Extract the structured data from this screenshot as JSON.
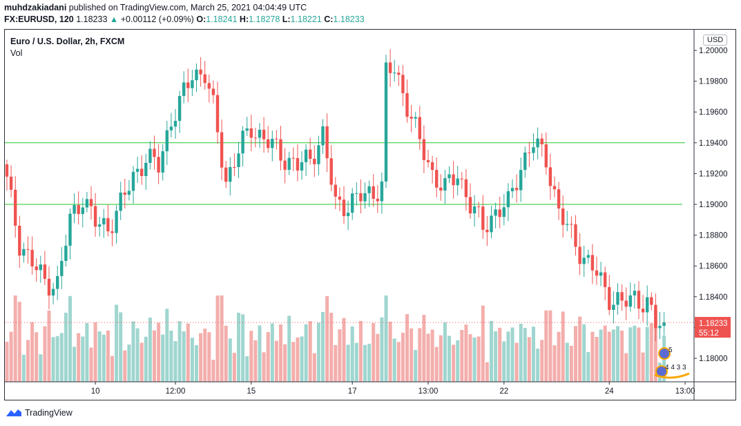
{
  "header": {
    "publisher": "muhdzakiadani",
    "published_text": "published on TradingView.com, March 25, 2021 04:04:49 UTC",
    "symbol": "FX:EURUSD, 120",
    "last": "1.18233",
    "change": "+0.00112 (+0.09%)",
    "o_label": "O:",
    "o_value": "1.18241",
    "h_label": "H:",
    "h_value": "1.18278",
    "l_label": "L:",
    "l_value": "1.18221",
    "c_label": "C:",
    "c_value": "1.18233"
  },
  "legend": {
    "title": "Euro / U.S. Dollar, 2h, FXCM",
    "volume": "Vol"
  },
  "currency_button": "USD",
  "price_label": {
    "value": "1.18233",
    "countdown": "55:12"
  },
  "events": {
    "top": "5",
    "bottom": "4 4 3 3"
  },
  "footer": {
    "brand": "TradingView"
  },
  "colors": {
    "up": "#26a69a",
    "down": "#ef5350",
    "up_vol": "#9fd6cf",
    "down_vol": "#f3aeac",
    "hline": "#22c42a",
    "lastline": "#ef5350"
  },
  "chart_data": {
    "type": "candlestick",
    "symbol": "EURUSD",
    "interval": "2h",
    "y_axis": {
      "ticks": [
        1.18,
        1.182,
        1.184,
        1.186,
        1.188,
        1.19,
        1.192,
        1.194,
        1.196,
        1.198,
        1.2
      ],
      "tick_labels": [
        "1.18000",
        "1.18200",
        "1.18400",
        "1.18600",
        "1.18800",
        "1.19000",
        "1.19200",
        "1.19400",
        "1.19600",
        "1.19800",
        "1.20000"
      ],
      "range": [
        1.1772,
        1.2012
      ]
    },
    "x_axis": {
      "tick_labels": [
        "10",
        "12:00",
        "15",
        "17",
        "13:00",
        "22",
        "24",
        "13:00"
      ],
      "tick_bar_index": [
        21,
        40,
        58,
        82,
        100,
        118,
        143,
        161
      ]
    },
    "horizontal_lines": [
      1.194,
      1.19
    ],
    "last_price": 1.18233,
    "bars": 157,
    "anchors": [
      [
        0,
        1.1915
      ],
      [
        3,
        1.1875
      ],
      [
        6,
        1.1862
      ],
      [
        9,
        1.185
      ],
      [
        12,
        1.1848
      ],
      [
        15,
        1.189
      ],
      [
        18,
        1.1905
      ],
      [
        21,
        1.1888
      ],
      [
        24,
        1.1885
      ],
      [
        27,
        1.19
      ],
      [
        30,
        1.1918
      ],
      [
        33,
        1.193
      ],
      [
        36,
        1.1925
      ],
      [
        39,
        1.1955
      ],
      [
        41,
        1.1965
      ],
      [
        44,
        1.1985
      ],
      [
        47,
        1.1985
      ],
      [
        49,
        1.1962
      ],
      [
        52,
        1.1915
      ],
      [
        55,
        1.1935
      ],
      [
        58,
        1.195
      ],
      [
        60,
        1.1945
      ],
      [
        63,
        1.1938
      ],
      [
        66,
        1.193
      ],
      [
        69,
        1.1925
      ],
      [
        72,
        1.193
      ],
      [
        75,
        1.1945
      ],
      [
        78,
        1.19
      ],
      [
        81,
        1.19
      ],
      [
        84,
        1.1905
      ],
      [
        87,
        1.1908
      ],
      [
        89,
        1.1912
      ],
      [
        90,
        1.1985
      ],
      [
        92,
        1.1988
      ],
      [
        95,
        1.1965
      ],
      [
        98,
        1.194
      ],
      [
        101,
        1.192
      ],
      [
        104,
        1.191
      ],
      [
        107,
        1.192
      ],
      [
        110,
        1.19
      ],
      [
        113,
        1.1885
      ],
      [
        116,
        1.1895
      ],
      [
        119,
        1.19
      ],
      [
        122,
        1.1925
      ],
      [
        125,
        1.194
      ],
      [
        128,
        1.193
      ],
      [
        131,
        1.1895
      ],
      [
        134,
        1.188
      ],
      [
        137,
        1.1865
      ],
      [
        140,
        1.1855
      ],
      [
        143,
        1.184
      ],
      [
        146,
        1.1835
      ],
      [
        149,
        1.184
      ],
      [
        152,
        1.1835
      ],
      [
        154,
        1.1822
      ],
      [
        156,
        1.1823
      ]
    ]
  }
}
